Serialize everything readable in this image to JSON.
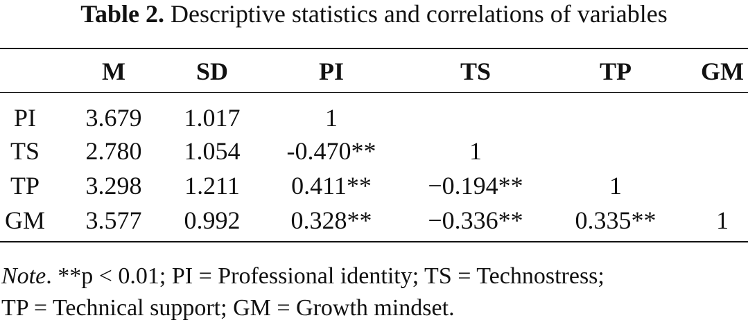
{
  "caption": {
    "label": "Table 2.",
    "text": "Descriptive statistics and correlations of variables"
  },
  "table": {
    "headers": [
      "",
      "M",
      "SD",
      "PI",
      "TS",
      "TP",
      "GM"
    ],
    "rows": [
      [
        "PI",
        "3.679",
        "1.017",
        "1",
        "",
        "",
        ""
      ],
      [
        "TS",
        "2.780",
        "1.054",
        "-0.470**",
        "1",
        "",
        ""
      ],
      [
        "TP",
        "3.298",
        "1.211",
        "0.411**",
        "−0.194**",
        "1",
        ""
      ],
      [
        "GM",
        "3.577",
        "0.992",
        "0.328**",
        "−0.336**",
        "0.335**",
        "1"
      ]
    ]
  },
  "note": {
    "label": "Note",
    "line1_rest": ". **p < 0.01; PI = Professional identity; TS = Technostress;",
    "line2": "TP = Technical support; GM = Growth mindset."
  }
}
